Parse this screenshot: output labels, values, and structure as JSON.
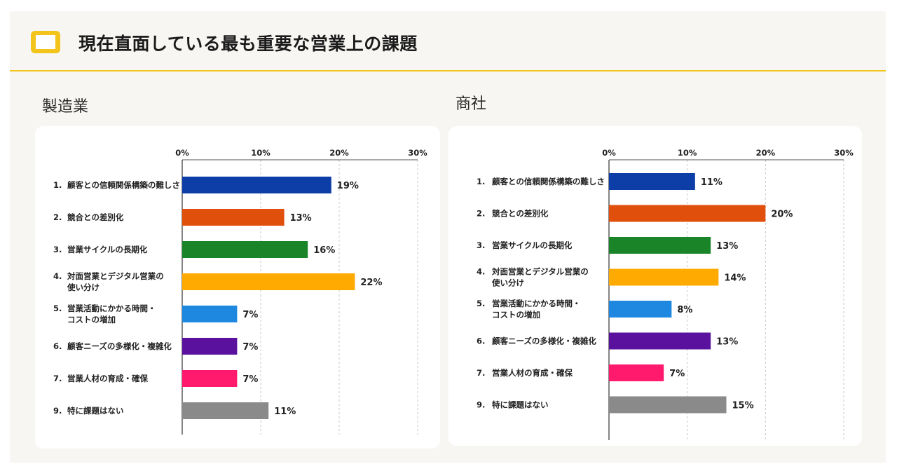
{
  "header": {
    "title": "現在直面している最も重要な営業上の課題",
    "icon": "book-icon",
    "accent_color": "#f2c41c"
  },
  "chart_data": [
    {
      "type": "bar",
      "orientation": "horizontal",
      "title": "製造業",
      "categories": [
        [
          "1.",
          "顧客との信頼関係構築の難しさ"
        ],
        [
          "2.",
          "競合との差別化"
        ],
        [
          "3.",
          "営業サイクルの長期化"
        ],
        [
          "4.",
          "対面営業とデジタル営業の",
          "使い分け"
        ],
        [
          "5.",
          "営業活動にかかる時間・",
          "コストの増加"
        ],
        [
          "6.",
          "顧客ニーズの多様化・複雑化"
        ],
        [
          "7.",
          "営業人材の育成・確保"
        ],
        [
          "9.",
          "特に課題はない"
        ]
      ],
      "values": [
        19,
        13,
        16,
        22,
        7,
        7,
        7,
        11
      ],
      "value_labels": [
        "19%",
        "13%",
        "16%",
        "22%",
        "7%",
        "7%",
        "7%",
        "11%"
      ],
      "colors": [
        "#0d3ea8",
        "#e04f0c",
        "#1a8428",
        "#ffaa00",
        "#1e88e0",
        "#5a129e",
        "#ff1a6e",
        "#8a8a8a"
      ],
      "xlim": [
        0,
        30
      ],
      "ticks": [
        0,
        10,
        20,
        30
      ],
      "tick_labels": [
        "0%",
        "10%",
        "20%",
        "30%"
      ],
      "grid": true
    },
    {
      "type": "bar",
      "orientation": "horizontal",
      "title": "商社",
      "categories": [
        [
          "1.",
          "顧客との信頼関係構築の難しさ"
        ],
        [
          "2.",
          "競合との差別化"
        ],
        [
          "3.",
          "営業サイクルの長期化"
        ],
        [
          "4.",
          "対面営業とデジタル営業の",
          "使い分け"
        ],
        [
          "5.",
          "営業活動にかかる時間・",
          "コストの増加"
        ],
        [
          "6.",
          "顧客ニーズの多様化・複雑化"
        ],
        [
          "7.",
          "営業人材の育成・確保"
        ],
        [
          "9.",
          "特に課題はない"
        ]
      ],
      "values": [
        11,
        20,
        13,
        14,
        8,
        13,
        7,
        15
      ],
      "value_labels": [
        "11%",
        "20%",
        "13%",
        "14%",
        "8%",
        "13%",
        "7%",
        "15%"
      ],
      "colors": [
        "#0d3ea8",
        "#e04f0c",
        "#1a8428",
        "#ffaa00",
        "#1e88e0",
        "#5a129e",
        "#ff1a6e",
        "#8a8a8a"
      ],
      "xlim": [
        0,
        30
      ],
      "ticks": [
        0,
        10,
        20,
        30
      ],
      "tick_labels": [
        "0%",
        "10%",
        "20%",
        "30%"
      ],
      "grid": true
    }
  ]
}
